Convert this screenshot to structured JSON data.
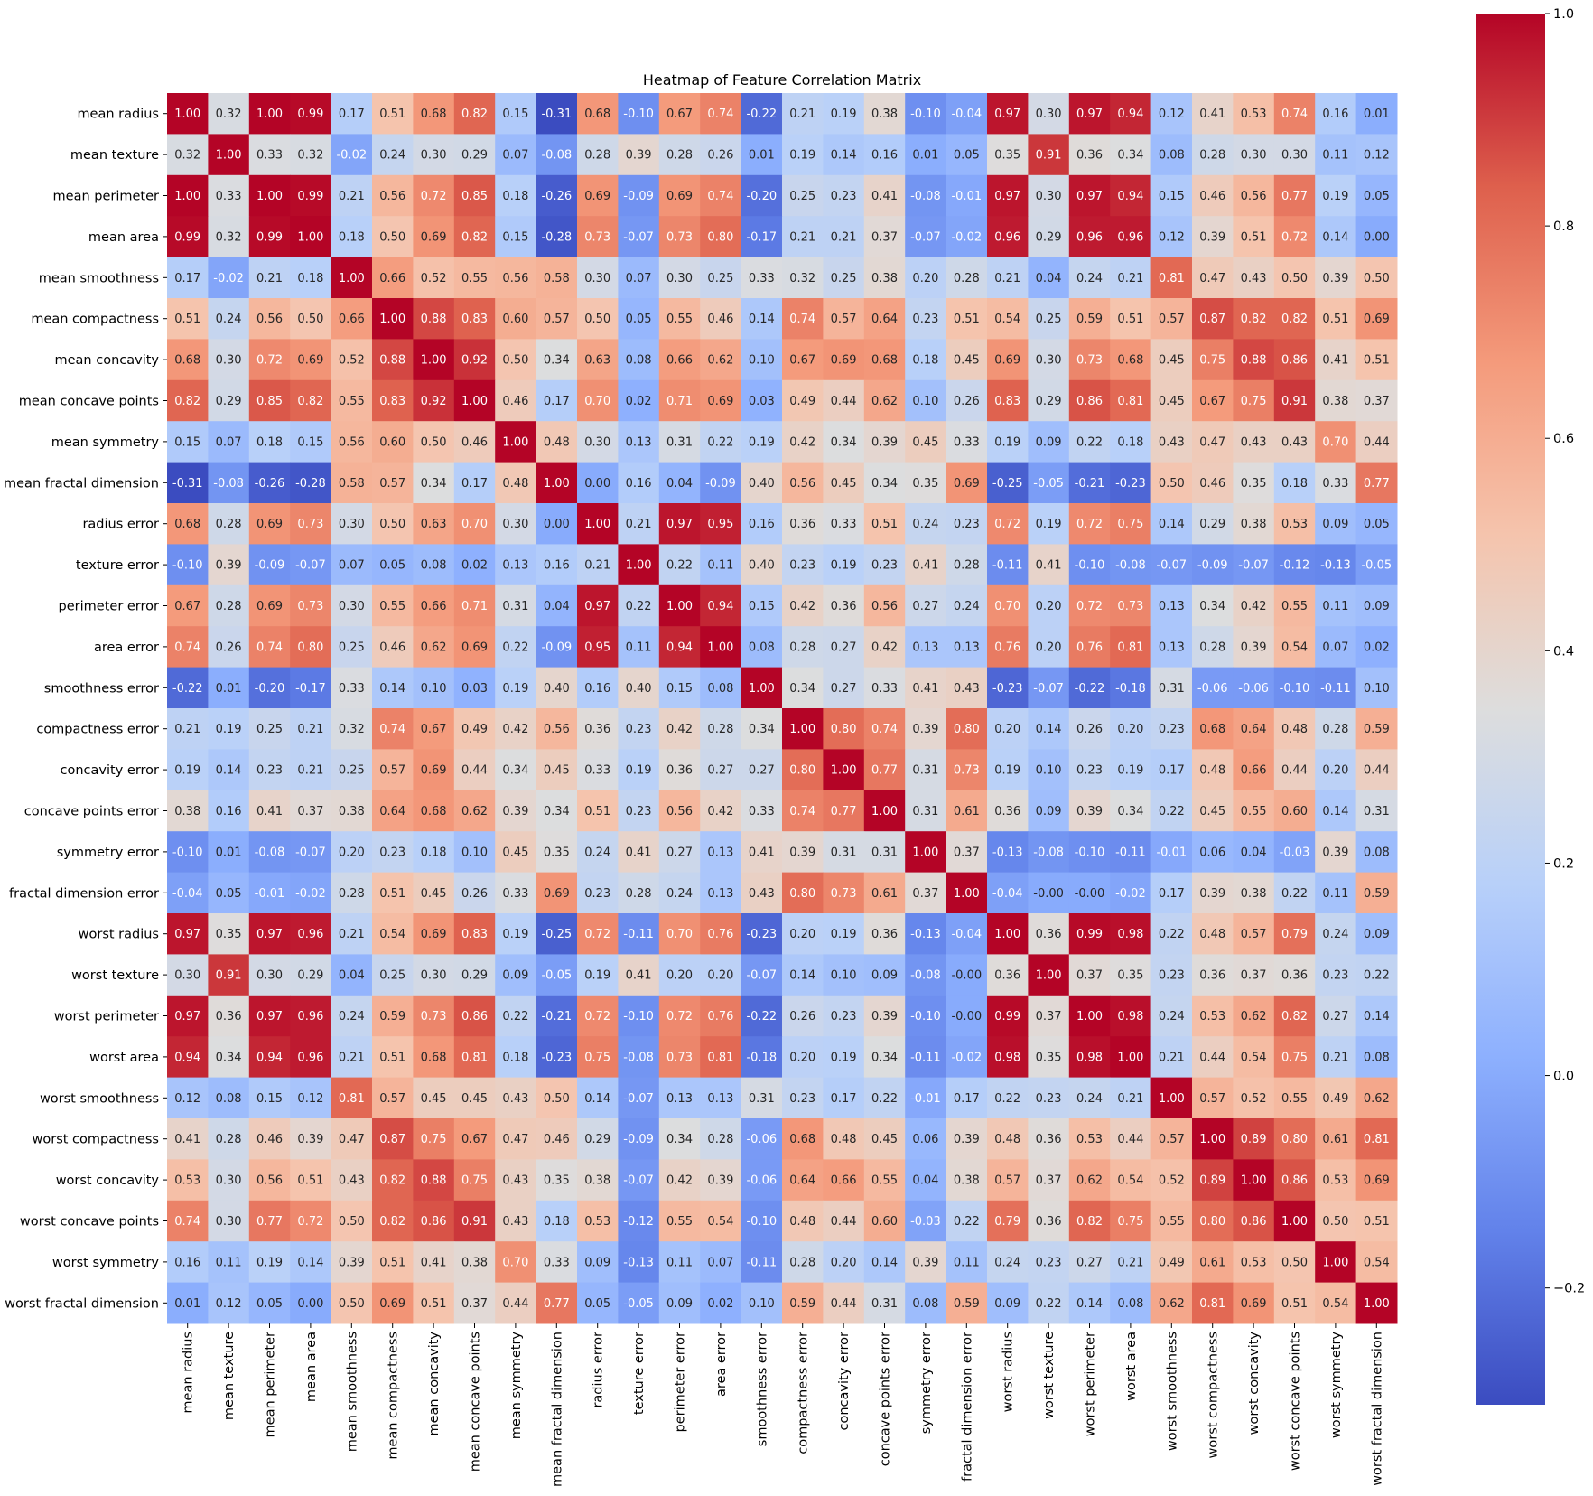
{
  "chart_data": {
    "type": "heatmap",
    "title": "Heatmap of Feature Correlation Matrix",
    "colormap": "coolwarm",
    "vmin": -0.31,
    "vmax": 1.0,
    "colorbar_ticks": [
      1.0,
      0.8,
      0.6,
      0.4,
      0.2,
      0.0,
      -0.2
    ],
    "colorbar_tick_labels": [
      "1.0",
      "0.8",
      "0.6",
      "0.4",
      "0.2",
      "0.0",
      "−0.2"
    ],
    "legend_placement": "right",
    "labels": [
      "mean radius",
      "mean texture",
      "mean perimeter",
      "mean area",
      "mean smoothness",
      "mean compactness",
      "mean concavity",
      "mean concave points",
      "mean symmetry",
      "mean fractal dimension",
      "radius error",
      "texture error",
      "perimeter error",
      "area error",
      "smoothness error",
      "compactness error",
      "concavity error",
      "concave points error",
      "symmetry error",
      "fractal dimension error",
      "worst radius",
      "worst texture",
      "worst perimeter",
      "worst area",
      "worst smoothness",
      "worst compactness",
      "worst concavity",
      "worst concave points",
      "worst symmetry",
      "worst fractal dimension"
    ],
    "values": [
      [
        1.0,
        0.32,
        1.0,
        0.99,
        0.17,
        0.51,
        0.68,
        0.82,
        0.15,
        -0.31,
        0.68,
        -0.1,
        0.67,
        0.74,
        -0.22,
        0.21,
        0.19,
        0.38,
        -0.1,
        -0.04,
        0.97,
        0.3,
        0.97,
        0.94,
        0.12,
        0.41,
        0.53,
        0.74,
        0.16,
        0.01
      ],
      [
        0.32,
        1.0,
        0.33,
        0.32,
        -0.02,
        0.24,
        0.3,
        0.29,
        0.07,
        -0.08,
        0.28,
        0.39,
        0.28,
        0.26,
        0.01,
        0.19,
        0.14,
        0.16,
        0.01,
        0.05,
        0.35,
        0.91,
        0.36,
        0.34,
        0.08,
        0.28,
        0.3,
        0.3,
        0.11,
        0.12
      ],
      [
        1.0,
        0.33,
        1.0,
        0.99,
        0.21,
        0.56,
        0.72,
        0.85,
        0.18,
        -0.26,
        0.69,
        -0.09,
        0.69,
        0.74,
        -0.2,
        0.25,
        0.23,
        0.41,
        -0.08,
        -0.01,
        0.97,
        0.3,
        0.97,
        0.94,
        0.15,
        0.46,
        0.56,
        0.77,
        0.19,
        0.05
      ],
      [
        0.99,
        0.32,
        0.99,
        1.0,
        0.18,
        0.5,
        0.69,
        0.82,
        0.15,
        -0.28,
        0.73,
        -0.07,
        0.73,
        0.8,
        -0.17,
        0.21,
        0.21,
        0.37,
        -0.07,
        -0.02,
        0.96,
        0.29,
        0.96,
        0.96,
        0.12,
        0.39,
        0.51,
        0.72,
        0.14,
        0.0
      ],
      [
        0.17,
        -0.02,
        0.21,
        0.18,
        1.0,
        0.66,
        0.52,
        0.55,
        0.56,
        0.58,
        0.3,
        0.07,
        0.3,
        0.25,
        0.33,
        0.32,
        0.25,
        0.38,
        0.2,
        0.28,
        0.21,
        0.04,
        0.24,
        0.21,
        0.81,
        0.47,
        0.43,
        0.5,
        0.39,
        0.5
      ],
      [
        0.51,
        0.24,
        0.56,
        0.5,
        0.66,
        1.0,
        0.88,
        0.83,
        0.6,
        0.57,
        0.5,
        0.05,
        0.55,
        0.46,
        0.14,
        0.74,
        0.57,
        0.64,
        0.23,
        0.51,
        0.54,
        0.25,
        0.59,
        0.51,
        0.57,
        0.87,
        0.82,
        0.82,
        0.51,
        0.69
      ],
      [
        0.68,
        0.3,
        0.72,
        0.69,
        0.52,
        0.88,
        1.0,
        0.92,
        0.5,
        0.34,
        0.63,
        0.08,
        0.66,
        0.62,
        0.1,
        0.67,
        0.69,
        0.68,
        0.18,
        0.45,
        0.69,
        0.3,
        0.73,
        0.68,
        0.45,
        0.75,
        0.88,
        0.86,
        0.41,
        0.51
      ],
      [
        0.82,
        0.29,
        0.85,
        0.82,
        0.55,
        0.83,
        0.92,
        1.0,
        0.46,
        0.17,
        0.7,
        0.02,
        0.71,
        0.69,
        0.03,
        0.49,
        0.44,
        0.62,
        0.1,
        0.26,
        0.83,
        0.29,
        0.86,
        0.81,
        0.45,
        0.67,
        0.75,
        0.91,
        0.38,
        0.37
      ],
      [
        0.15,
        0.07,
        0.18,
        0.15,
        0.56,
        0.6,
        0.5,
        0.46,
        1.0,
        0.48,
        0.3,
        0.13,
        0.31,
        0.22,
        0.19,
        0.42,
        0.34,
        0.39,
        0.45,
        0.33,
        0.19,
        0.09,
        0.22,
        0.18,
        0.43,
        0.47,
        0.43,
        0.43,
        0.7,
        0.44
      ],
      [
        -0.31,
        -0.08,
        -0.26,
        -0.28,
        0.58,
        0.57,
        0.34,
        0.17,
        0.48,
        1.0,
        0.0,
        0.16,
        0.04,
        -0.09,
        0.4,
        0.56,
        0.45,
        0.34,
        0.35,
        0.69,
        -0.25,
        -0.05,
        -0.21,
        -0.23,
        0.5,
        0.46,
        0.35,
        0.18,
        0.33,
        0.77
      ],
      [
        0.68,
        0.28,
        0.69,
        0.73,
        0.3,
        0.5,
        0.63,
        0.7,
        0.3,
        0.0,
        1.0,
        0.21,
        0.97,
        0.95,
        0.16,
        0.36,
        0.33,
        0.51,
        0.24,
        0.23,
        0.72,
        0.19,
        0.72,
        0.75,
        0.14,
        0.29,
        0.38,
        0.53,
        0.09,
        0.05
      ],
      [
        -0.1,
        0.39,
        -0.09,
        -0.07,
        0.07,
        0.05,
        0.08,
        0.02,
        0.13,
        0.16,
        0.21,
        1.0,
        0.22,
        0.11,
        0.4,
        0.23,
        0.19,
        0.23,
        0.41,
        0.28,
        -0.11,
        0.41,
        -0.1,
        -0.08,
        -0.07,
        -0.09,
        -0.07,
        -0.12,
        -0.13,
        -0.05
      ],
      [
        0.67,
        0.28,
        0.69,
        0.73,
        0.3,
        0.55,
        0.66,
        0.71,
        0.31,
        0.04,
        0.97,
        0.22,
        1.0,
        0.94,
        0.15,
        0.42,
        0.36,
        0.56,
        0.27,
        0.24,
        0.7,
        0.2,
        0.72,
        0.73,
        0.13,
        0.34,
        0.42,
        0.55,
        0.11,
        0.09
      ],
      [
        0.74,
        0.26,
        0.74,
        0.8,
        0.25,
        0.46,
        0.62,
        0.69,
        0.22,
        -0.09,
        0.95,
        0.11,
        0.94,
        1.0,
        0.08,
        0.28,
        0.27,
        0.42,
        0.13,
        0.13,
        0.76,
        0.2,
        0.76,
        0.81,
        0.13,
        0.28,
        0.39,
        0.54,
        0.07,
        0.02
      ],
      [
        -0.22,
        0.01,
        -0.2,
        -0.17,
        0.33,
        0.14,
        0.1,
        0.03,
        0.19,
        0.4,
        0.16,
        0.4,
        0.15,
        0.08,
        1.0,
        0.34,
        0.27,
        0.33,
        0.41,
        0.43,
        -0.23,
        -0.07,
        -0.22,
        -0.18,
        0.31,
        -0.06,
        -0.06,
        -0.1,
        -0.11,
        0.1
      ],
      [
        0.21,
        0.19,
        0.25,
        0.21,
        0.32,
        0.74,
        0.67,
        0.49,
        0.42,
        0.56,
        0.36,
        0.23,
        0.42,
        0.28,
        0.34,
        1.0,
        0.8,
        0.74,
        0.39,
        0.8,
        0.2,
        0.14,
        0.26,
        0.2,
        0.23,
        0.68,
        0.64,
        0.48,
        0.28,
        0.59
      ],
      [
        0.19,
        0.14,
        0.23,
        0.21,
        0.25,
        0.57,
        0.69,
        0.44,
        0.34,
        0.45,
        0.33,
        0.19,
        0.36,
        0.27,
        0.27,
        0.8,
        1.0,
        0.77,
        0.31,
        0.73,
        0.19,
        0.1,
        0.23,
        0.19,
        0.17,
        0.48,
        0.66,
        0.44,
        0.2,
        0.44
      ],
      [
        0.38,
        0.16,
        0.41,
        0.37,
        0.38,
        0.64,
        0.68,
        0.62,
        0.39,
        0.34,
        0.51,
        0.23,
        0.56,
        0.42,
        0.33,
        0.74,
        0.77,
        1.0,
        0.31,
        0.61,
        0.36,
        0.09,
        0.39,
        0.34,
        0.22,
        0.45,
        0.55,
        0.6,
        0.14,
        0.31
      ],
      [
        -0.1,
        0.01,
        -0.08,
        -0.07,
        0.2,
        0.23,
        0.18,
        0.1,
        0.45,
        0.35,
        0.24,
        0.41,
        0.27,
        0.13,
        0.41,
        0.39,
        0.31,
        0.31,
        1.0,
        0.37,
        -0.13,
        -0.08,
        -0.1,
        -0.11,
        -0.01,
        0.06,
        0.04,
        -0.03,
        0.39,
        0.08
      ],
      [
        -0.04,
        0.05,
        -0.01,
        -0.02,
        0.28,
        0.51,
        0.45,
        0.26,
        0.33,
        0.69,
        0.23,
        0.28,
        0.24,
        0.13,
        0.43,
        0.8,
        0.73,
        0.61,
        0.37,
        1.0,
        -0.04,
        -0.0,
        -0.0,
        -0.02,
        0.17,
        0.39,
        0.38,
        0.22,
        0.11,
        0.59
      ],
      [
        0.97,
        0.35,
        0.97,
        0.96,
        0.21,
        0.54,
        0.69,
        0.83,
        0.19,
        -0.25,
        0.72,
        -0.11,
        0.7,
        0.76,
        -0.23,
        0.2,
        0.19,
        0.36,
        -0.13,
        -0.04,
        1.0,
        0.36,
        0.99,
        0.98,
        0.22,
        0.48,
        0.57,
        0.79,
        0.24,
        0.09
      ],
      [
        0.3,
        0.91,
        0.3,
        0.29,
        0.04,
        0.25,
        0.3,
        0.29,
        0.09,
        -0.05,
        0.19,
        0.41,
        0.2,
        0.2,
        -0.07,
        0.14,
        0.1,
        0.09,
        -0.08,
        -0.0,
        0.36,
        1.0,
        0.37,
        0.35,
        0.23,
        0.36,
        0.37,
        0.36,
        0.23,
        0.22
      ],
      [
        0.97,
        0.36,
        0.97,
        0.96,
        0.24,
        0.59,
        0.73,
        0.86,
        0.22,
        -0.21,
        0.72,
        -0.1,
        0.72,
        0.76,
        -0.22,
        0.26,
        0.23,
        0.39,
        -0.1,
        -0.0,
        0.99,
        0.37,
        1.0,
        0.98,
        0.24,
        0.53,
        0.62,
        0.82,
        0.27,
        0.14
      ],
      [
        0.94,
        0.34,
        0.94,
        0.96,
        0.21,
        0.51,
        0.68,
        0.81,
        0.18,
        -0.23,
        0.75,
        -0.08,
        0.73,
        0.81,
        -0.18,
        0.2,
        0.19,
        0.34,
        -0.11,
        -0.02,
        0.98,
        0.35,
        0.98,
        1.0,
        0.21,
        0.44,
        0.54,
        0.75,
        0.21,
        0.08
      ],
      [
        0.12,
        0.08,
        0.15,
        0.12,
        0.81,
        0.57,
        0.45,
        0.45,
        0.43,
        0.5,
        0.14,
        -0.07,
        0.13,
        0.13,
        0.31,
        0.23,
        0.17,
        0.22,
        -0.01,
        0.17,
        0.22,
        0.23,
        0.24,
        0.21,
        1.0,
        0.57,
        0.52,
        0.55,
        0.49,
        0.62
      ],
      [
        0.41,
        0.28,
        0.46,
        0.39,
        0.47,
        0.87,
        0.75,
        0.67,
        0.47,
        0.46,
        0.29,
        -0.09,
        0.34,
        0.28,
        -0.06,
        0.68,
        0.48,
        0.45,
        0.06,
        0.39,
        0.48,
        0.36,
        0.53,
        0.44,
        0.57,
        1.0,
        0.89,
        0.8,
        0.61,
        0.81
      ],
      [
        0.53,
        0.3,
        0.56,
        0.51,
        0.43,
        0.82,
        0.88,
        0.75,
        0.43,
        0.35,
        0.38,
        -0.07,
        0.42,
        0.39,
        -0.06,
        0.64,
        0.66,
        0.55,
        0.04,
        0.38,
        0.57,
        0.37,
        0.62,
        0.54,
        0.52,
        0.89,
        1.0,
        0.86,
        0.53,
        0.69
      ],
      [
        0.74,
        0.3,
        0.77,
        0.72,
        0.5,
        0.82,
        0.86,
        0.91,
        0.43,
        0.18,
        0.53,
        -0.12,
        0.55,
        0.54,
        -0.1,
        0.48,
        0.44,
        0.6,
        -0.03,
        0.22,
        0.79,
        0.36,
        0.82,
        0.75,
        0.55,
        0.8,
        0.86,
        1.0,
        0.5,
        0.51
      ],
      [
        0.16,
        0.11,
        0.19,
        0.14,
        0.39,
        0.51,
        0.41,
        0.38,
        0.7,
        0.33,
        0.09,
        -0.13,
        0.11,
        0.07,
        -0.11,
        0.28,
        0.2,
        0.14,
        0.39,
        0.11,
        0.24,
        0.23,
        0.27,
        0.21,
        0.49,
        0.61,
        0.53,
        0.5,
        1.0,
        0.54
      ],
      [
        0.01,
        0.12,
        0.05,
        0.0,
        0.5,
        0.69,
        0.51,
        0.37,
        0.44,
        0.77,
        0.05,
        -0.05,
        0.09,
        0.02,
        0.1,
        0.59,
        0.44,
        0.31,
        0.08,
        0.59,
        0.09,
        0.22,
        0.14,
        0.08,
        0.62,
        0.81,
        0.69,
        0.51,
        0.54,
        1.0
      ]
    ]
  }
}
